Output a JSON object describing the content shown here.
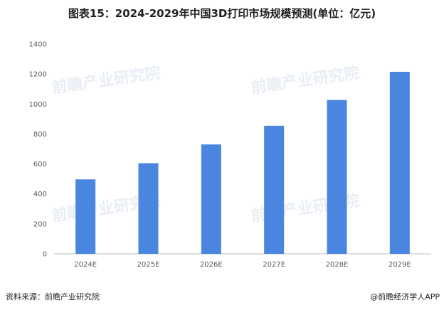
{
  "title": "图表15：2024-2029年中国3D打印市场规模预测(单位：亿元)",
  "footer": {
    "source": "资料来源：前瞻产业研究院",
    "credit": "@前瞻经济学人APP"
  },
  "watermark": {
    "text": "前瞻产业研究院"
  },
  "colors": {
    "bar": "#4a86e0",
    "axis": "#bfbfbf",
    "text": "#595959"
  },
  "chart_data": {
    "type": "bar",
    "title": "图表15：2024-2029年中国3D打印市场规模预测(单位：亿元)",
    "categories": [
      "2024E",
      "2025E",
      "2026E",
      "2027E",
      "2028E",
      "2029E"
    ],
    "values": [
      497,
      605,
      730,
      855,
      1027,
      1215
    ],
    "ylim": [
      0,
      1400
    ],
    "yticks": [
      0,
      200,
      400,
      600,
      800,
      1000,
      1200,
      1400
    ],
    "grid": false,
    "xlabel": "",
    "ylabel": ""
  }
}
